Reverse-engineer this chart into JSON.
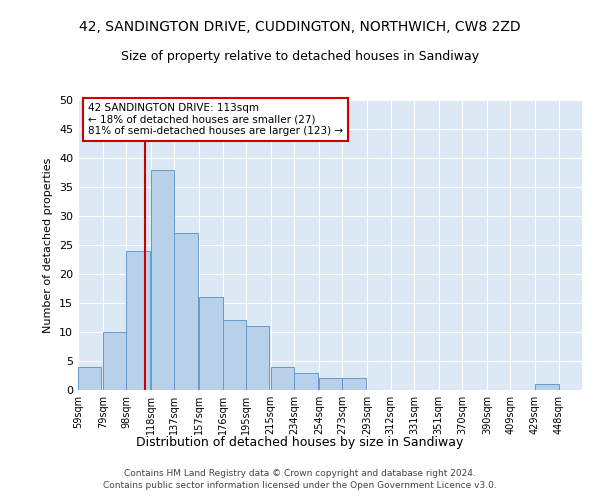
{
  "title": "42, SANDINGTON DRIVE, CUDDINGTON, NORTHWICH, CW8 2ZD",
  "subtitle": "Size of property relative to detached houses in Sandiway",
  "xlabel": "Distribution of detached houses by size in Sandiway",
  "ylabel": "Number of detached properties",
  "bar_color": "#b8d0e8",
  "bar_edge_color": "#6699cc",
  "background_color": "#dce9f5",
  "grid_color": "#ffffff",
  "annotation_box_color": "#cc0000",
  "annotation_line_color": "#cc0000",
  "footer": "Contains HM Land Registry data © Crown copyright and database right 2024.\nContains public sector information licensed under the Open Government Licence v3.0.",
  "property_size": 113,
  "annotation_text_line1": "42 SANDINGTON DRIVE: 113sqm",
  "annotation_text_line2": "← 18% of detached houses are smaller (27)",
  "annotation_text_line3": "81% of semi-detached houses are larger (123) →",
  "bin_labels": [
    "59sqm",
    "79sqm",
    "98sqm",
    "118sqm",
    "137sqm",
    "157sqm",
    "176sqm",
    "195sqm",
    "215sqm",
    "234sqm",
    "254sqm",
    "273sqm",
    "293sqm",
    "312sqm",
    "331sqm",
    "351sqm",
    "370sqm",
    "390sqm",
    "409sqm",
    "429sqm",
    "448sqm"
  ],
  "bin_starts": [
    59,
    79,
    98,
    118,
    137,
    157,
    176,
    195,
    215,
    234,
    254,
    273,
    293,
    312,
    331,
    351,
    370,
    390,
    409,
    429,
    448
  ],
  "bar_heights": [
    4,
    10,
    24,
    38,
    27,
    16,
    12,
    11,
    4,
    3,
    2,
    2,
    0,
    0,
    0,
    0,
    0,
    0,
    0,
    1,
    0
  ],
  "bin_width": 19,
  "ylim": [
    0,
    50
  ],
  "yticks": [
    0,
    5,
    10,
    15,
    20,
    25,
    30,
    35,
    40,
    45,
    50
  ],
  "red_line_x": 113,
  "title_fontsize": 10,
  "subtitle_fontsize": 9,
  "xlabel_fontsize": 9,
  "ylabel_fontsize": 8,
  "tick_fontsize": 8,
  "xtick_fontsize": 7,
  "footer_fontsize": 6.5
}
